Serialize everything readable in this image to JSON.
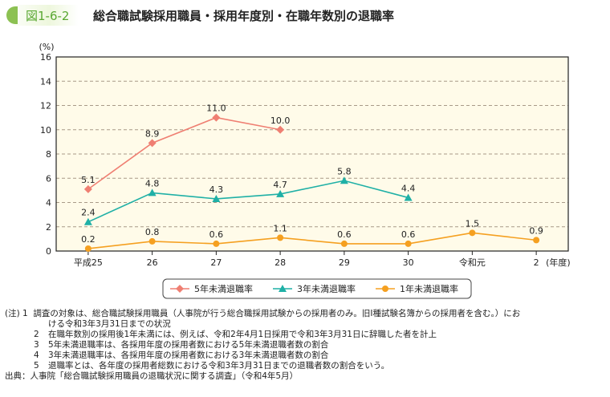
{
  "figure_label": "図1-6-2",
  "title": "総合職試験採用職員・採用年度別・在職年数別の退職率",
  "chart_data": {
    "type": "line",
    "ylabel": "(%)",
    "xlabel": "(年度)",
    "ylim": [
      0,
      16
    ],
    "yticks": [
      0,
      2,
      4,
      6,
      8,
      10,
      12,
      14,
      16
    ],
    "grid": "horizontal dashed",
    "legend_position": "bottom",
    "categories": [
      "平成25",
      "26",
      "27",
      "28",
      "29",
      "30",
      "令和元",
      "2"
    ],
    "series": [
      {
        "name": "5年未満退職率",
        "color": "#ef7f72",
        "marker": "diamond",
        "values": [
          5.1,
          8.9,
          11.0,
          10.0,
          null,
          null,
          null,
          null
        ]
      },
      {
        "name": "3年未満退職率",
        "color": "#1fb0a6",
        "marker": "triangle",
        "values": [
          2.4,
          4.8,
          4.3,
          4.7,
          5.8,
          4.4,
          null,
          null
        ]
      },
      {
        "name": "1年未満退職率",
        "color": "#f5a020",
        "marker": "circle",
        "values": [
          0.2,
          0.8,
          0.6,
          1.1,
          0.6,
          0.6,
          1.5,
          0.9
        ]
      }
    ],
    "background": "#fffbe9"
  },
  "notes": [
    {
      "label": "(注) 1",
      "text": "調査の対象は、総合職試験採用職員（人事院が行う総合職採用試験からの採用者のみ。旧Ⅰ種試験名簿からの採用者を含む。）にお"
    },
    {
      "label": "",
      "text": "ける令和3年3月31日までの状況"
    },
    {
      "label": "2",
      "text": "在職年数別の採用後1年未満には、例えば、令和2年4月1日採用で令和3年3月31日に辞職した者を計上"
    },
    {
      "label": "3",
      "text": "5年未満退職率は、各採用年度の採用者数における5年未満退職者数の割合"
    },
    {
      "label": "4",
      "text": "3年未満退職率は、各採用年度の採用者数における3年未満退職者数の割合"
    },
    {
      "label": "5",
      "text": "退職率とは、各年度の採用者総数における令和3年3月31日までの退職者数の割合をいう。"
    }
  ],
  "source": "出典：人事院「総合職試験採用職員の退職状況に関する調査」（令和4年5月）"
}
